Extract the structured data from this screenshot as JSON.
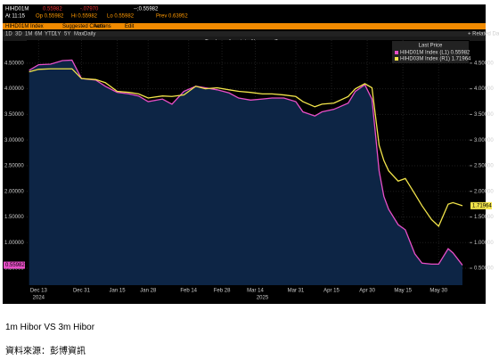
{
  "header": {
    "ticker": "HIHD01M",
    "last": "0.55982",
    "change": "-.07970",
    "quote": "--;0.55982",
    "time": "At 11:15",
    "open": "Op 0.55982",
    "high": "Hi 0.55982",
    "low": "Lo 0.55982",
    "close": "Lo 0.55982",
    "prev": "Prev 0.63952"
  },
  "toolbar": {
    "security": "HIHD01M Index",
    "menu": [
      "Suggested Charts",
      "Actions",
      "Edit"
    ],
    "ranges": [
      "1D",
      "3D",
      "1M",
      "6M",
      "YTD",
      "1Y",
      "5Y",
      "Max",
      "Daily"
    ],
    "tools": [
      "Track",
      "Annotate",
      "News",
      "Zoom"
    ],
    "related": "+ Related Data"
  },
  "chart_data": {
    "type": "line",
    "legend_title": "Last Price",
    "fill_color": "#0d2545",
    "xlim": [
      "2024-12-08",
      "2025-06-12"
    ],
    "xticks": [
      {
        "value": "2024-12-13",
        "label": "Dec 13"
      },
      {
        "value": "2024-12-31",
        "label": "Dec 31"
      },
      {
        "value": "2025-01-15",
        "label": "Jan 15"
      },
      {
        "value": "2025-01-28",
        "label": "Jan 28"
      },
      {
        "value": "2025-02-14",
        "label": "Feb 14"
      },
      {
        "value": "2025-02-28",
        "label": "Feb 28"
      },
      {
        "value": "2025-03-14",
        "label": "Mar 14"
      },
      {
        "value": "2025-03-31",
        "label": "Mar 31"
      },
      {
        "value": "2025-04-15",
        "label": "Apr 15"
      },
      {
        "value": "2025-04-30",
        "label": "Apr 30"
      },
      {
        "value": "2025-05-15",
        "label": "May 15"
      },
      {
        "value": "2025-05-30",
        "label": "May 30"
      }
    ],
    "year_labels": [
      {
        "value": "2024-12-13",
        "label": "2024"
      },
      {
        "value": "2025-03-17",
        "label": "2025"
      }
    ],
    "ylim": [
      0.17,
      4.95
    ],
    "y2lim": [
      0.17,
      4.95
    ],
    "yticks": [
      {
        "value": 0.5,
        "label": "0.50000"
      },
      {
        "value": 1,
        "label": "1.00000"
      },
      {
        "value": 1.5,
        "label": "1.50000"
      },
      {
        "value": 2,
        "label": "2.00000"
      },
      {
        "value": 2.5,
        "label": "2.50000"
      },
      {
        "value": 3,
        "label": "3.00000"
      },
      {
        "value": 3.5,
        "label": "3.50000"
      },
      {
        "value": 4,
        "label": "4.00000"
      },
      {
        "value": 4.5,
        "label": "4.50000"
      }
    ],
    "y2ticks": [
      {
        "value": 0.5,
        "label": "0.50000"
      },
      {
        "value": 1,
        "label": "1.00000"
      },
      {
        "value": 1.5,
        "label": "1.50000"
      },
      {
        "value": 2,
        "label": "2.00000"
      },
      {
        "value": 2.5,
        "label": "2.50000"
      },
      {
        "value": 3,
        "label": "3.00000"
      },
      {
        "value": 3.5,
        "label": "3.50000"
      },
      {
        "value": 4,
        "label": "4.00000"
      },
      {
        "value": 4.5,
        "label": "4.50000"
      }
    ],
    "x": [
      "2024-12-09",
      "2024-12-13",
      "2024-12-18",
      "2024-12-23",
      "2024-12-27",
      "2024-12-31",
      "2025-01-06",
      "2025-01-10",
      "2025-01-15",
      "2025-01-20",
      "2025-01-24",
      "2025-01-28",
      "2025-02-03",
      "2025-02-07",
      "2025-02-12",
      "2025-02-17",
      "2025-02-21",
      "2025-02-26",
      "2025-03-03",
      "2025-03-07",
      "2025-03-12",
      "2025-03-17",
      "2025-03-21",
      "2025-03-26",
      "2025-03-31",
      "2025-04-03",
      "2025-04-08",
      "2025-04-11",
      "2025-04-16",
      "2025-04-22",
      "2025-04-25",
      "2025-04-29",
      "2025-05-02",
      "2025-05-05",
      "2025-05-07",
      "2025-05-09",
      "2025-05-13",
      "2025-05-16",
      "2025-05-20",
      "2025-05-23",
      "2025-05-27",
      "2025-05-30",
      "2025-06-03",
      "2025-06-05",
      "2025-06-09"
    ],
    "series": [
      {
        "name": "HIHD01M Index (L1) 0.55982",
        "color": "#e84fc8",
        "last_label": "0.55982",
        "values": [
          4.36,
          4.47,
          4.48,
          4.55,
          4.56,
          4.2,
          4.17,
          4.05,
          3.93,
          3.9,
          3.86,
          3.75,
          3.8,
          3.7,
          3.95,
          4.05,
          4.02,
          3.98,
          3.92,
          3.82,
          3.78,
          3.8,
          3.82,
          3.82,
          3.75,
          3.55,
          3.47,
          3.55,
          3.6,
          3.72,
          3.95,
          4.08,
          3.8,
          2.4,
          1.9,
          1.65,
          1.35,
          1.25,
          0.78,
          0.6,
          0.58,
          0.58,
          0.88,
          0.8,
          0.55982
        ]
      },
      {
        "name": "HIHD03M Index (R1) 1.71964",
        "color": "#f2e44a",
        "axis": "y2",
        "last_label": "1.71964",
        "values": [
          4.33,
          4.38,
          4.39,
          4.39,
          4.39,
          4.2,
          4.18,
          4.12,
          3.95,
          3.93,
          3.9,
          3.82,
          3.86,
          3.85,
          3.88,
          4.05,
          4.0,
          4.02,
          3.98,
          3.95,
          3.93,
          3.9,
          3.9,
          3.88,
          3.85,
          3.75,
          3.65,
          3.7,
          3.72,
          3.85,
          4.0,
          4.1,
          4.02,
          2.9,
          2.6,
          2.4,
          2.2,
          2.25,
          1.95,
          1.72,
          1.45,
          1.32,
          1.75,
          1.78,
          1.71964
        ]
      }
    ]
  },
  "document": {
    "caption": "1m Hibor VS 3m Hibor",
    "source": "資料來源：彭博資訊"
  }
}
